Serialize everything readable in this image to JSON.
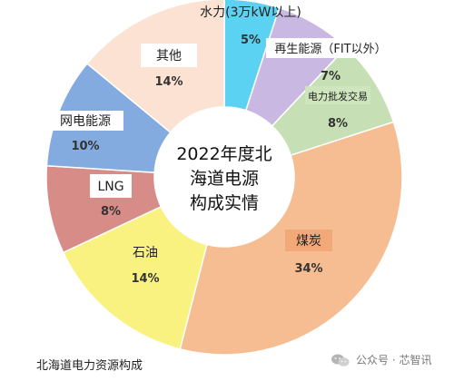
{
  "chart_data": {
    "type": "pie",
    "title": "2022年度北海道电源构成实情",
    "title_lines": [
      "2022年度北",
      "海道电源",
      "构成实情"
    ],
    "caption": "北海道电力资源构成",
    "donut": true,
    "unit": "%",
    "slices": [
      {
        "name": "水力(3万kW以上)",
        "value": 5,
        "label": "5%",
        "color": "#5cd2f2"
      },
      {
        "name": "再生能源（FIT以外）",
        "value": 7,
        "label": "7%",
        "color": "#c8b8e2"
      },
      {
        "name": "电力批发交易",
        "value": 8,
        "label": "8%",
        "color": "#c6dfb4"
      },
      {
        "name": "煤炭",
        "value": 34,
        "label": "34%",
        "color": "#f6bc92"
      },
      {
        "name": "石油",
        "value": 14,
        "label": "14%",
        "color": "#f9f281"
      },
      {
        "name": "LNG",
        "value": 8,
        "label": "8%",
        "color": "#d88c88"
      },
      {
        "name": "网电能源",
        "value": 10,
        "label": "10%",
        "color": "#84abe0"
      },
      {
        "name": "其他",
        "value": 14,
        "label": "14%",
        "color": "#fbe2d2"
      }
    ]
  },
  "watermark": {
    "text": "公众号 · 芯智讯",
    "icon": "wechat-icon"
  }
}
